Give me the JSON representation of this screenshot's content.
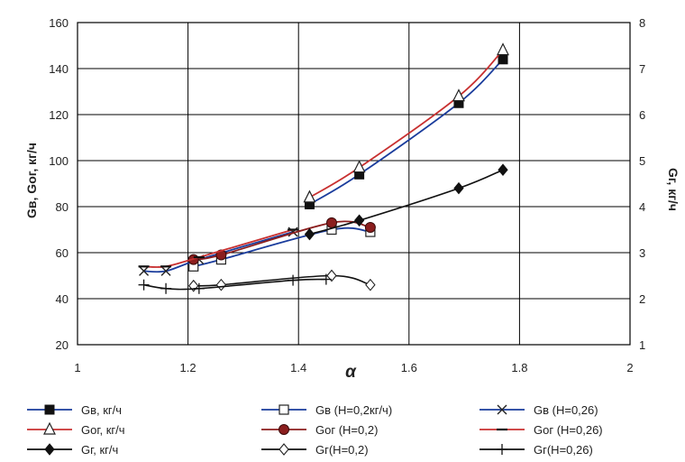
{
  "chart_data": {
    "type": "line",
    "title": "",
    "xlabel": "α",
    "ylabel_left": "Gв, Gог, кг/ч",
    "ylabel_right": "Gг, кг/ч",
    "xlim": [
      1,
      2
    ],
    "ylim_left": [
      20,
      160
    ],
    "ylim_right": [
      1,
      8
    ],
    "x_ticks": [
      "1",
      "1.2",
      "1.4",
      "1.6",
      "1.8",
      "2"
    ],
    "y_left_ticks": [
      "20",
      "40",
      "60",
      "80",
      "100",
      "120",
      "140",
      "160"
    ],
    "y_right_ticks": [
      "1",
      "2",
      "3",
      "4",
      "5",
      "6",
      "7",
      "8"
    ],
    "grid": true,
    "legend_position": "bottom",
    "series": [
      {
        "name": "Gв, кг/ч",
        "axis": "left",
        "color": "#1a3c9c",
        "marker": "filled-square",
        "x": [
          1.42,
          1.51,
          1.69,
          1.77
        ],
        "y": [
          81,
          94,
          125,
          144
        ]
      },
      {
        "name": "Gв (H=0,2кг/ч)",
        "axis": "left",
        "color": "#1a3c9c",
        "marker": "open-square",
        "x": [
          1.21,
          1.26,
          1.46,
          1.53
        ],
        "y": [
          54,
          57,
          70,
          69
        ]
      },
      {
        "name": "Gв (H=0,26)",
        "axis": "left",
        "color": "#1a3c9c",
        "marker": "x",
        "x": [
          1.12,
          1.16,
          1.22,
          1.39
        ],
        "y": [
          52,
          52,
          57,
          69
        ]
      },
      {
        "name": "Gог, кг/ч",
        "axis": "left",
        "color": "#c83030",
        "marker": "open-triangle",
        "x": [
          1.42,
          1.51,
          1.69,
          1.77
        ],
        "y": [
          84,
          97,
          128,
          148
        ]
      },
      {
        "name": "Gог (H=0,2)",
        "axis": "left",
        "color": "#8b1e1e",
        "marker": "filled-circle",
        "x": [
          1.21,
          1.26,
          1.46,
          1.53
        ],
        "y": [
          57,
          59,
          73,
          71
        ]
      },
      {
        "name": "Gог (H=0,26)",
        "axis": "left",
        "color": "#c83030",
        "marker": "dash",
        "x": [
          1.12,
          1.16,
          1.22,
          1.39
        ],
        "y": [
          54,
          54,
          58,
          70
        ]
      },
      {
        "name": "Gг, кг/ч",
        "axis": "right",
        "color": "#111111",
        "marker": "filled-diamond",
        "x": [
          1.42,
          1.51,
          1.69,
          1.77
        ],
        "y": [
          3.4,
          3.7,
          4.4,
          4.8
        ]
      },
      {
        "name": "Gг(H=0,2)",
        "axis": "right",
        "color": "#111111",
        "marker": "open-diamond",
        "x": [
          1.21,
          1.26,
          1.46,
          1.53
        ],
        "y": [
          2.28,
          2.3,
          2.5,
          2.3
        ]
      },
      {
        "name": "Gг(H=0,26)",
        "axis": "right",
        "color": "#111111",
        "marker": "plus",
        "x": [
          1.12,
          1.16,
          1.22,
          1.39,
          1.45
        ],
        "y": [
          2.3,
          2.22,
          2.22,
          2.4,
          2.42
        ]
      }
    ]
  }
}
